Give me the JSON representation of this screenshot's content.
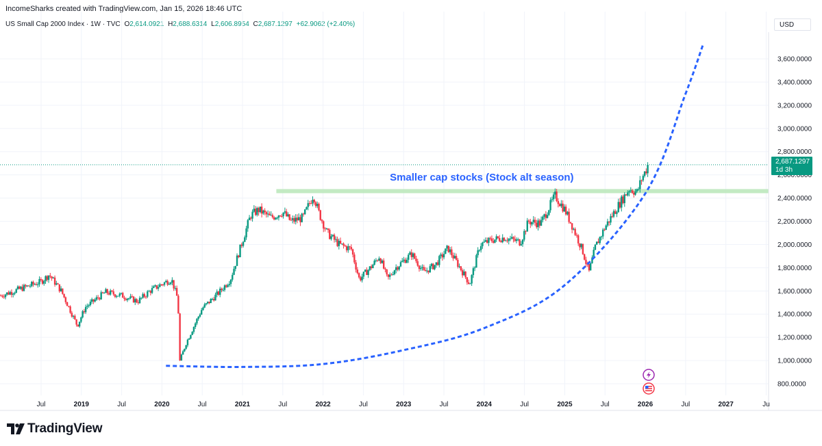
{
  "header": {
    "credit": "IncomeSharks created with TradingView.com, Jan 15, 2026 18:46 UTC"
  },
  "legend": {
    "symbol": "US Small Cap 2000 Index · 1W · TVC",
    "open_key": "O",
    "open": "2,614.0921",
    "high_key": "H",
    "high": "2,688.6314",
    "low_key": "L",
    "low": "2,606.8954",
    "close_key": "C",
    "close": "2,687.1297",
    "change": "+62.9062 (+2.40%)"
  },
  "currency": "USD",
  "price_tag": {
    "price": "2,687.1297",
    "countdown": "1d 3h"
  },
  "annotation": "Smaller cap stocks (Stock alt season)",
  "footer": {
    "brand": "TradingView"
  },
  "colors": {
    "up": "#089981",
    "down": "#f23645",
    "zone": "#b9e6b9",
    "curve": "#2962ff",
    "annotation": "#2962ff"
  },
  "icons": [
    "lightning-icon",
    "us-flag-icon"
  ],
  "chart_data": {
    "type": "candlestick",
    "title": "US Small Cap 2000 Index · 1W · TVC",
    "y_axis": {
      "ticks": [
        "800.0000",
        "1,000.0000",
        "1,200.0000",
        "1,400.0000",
        "1,600.0000",
        "1,800.0000",
        "2,000.0000",
        "2,200.0000",
        "2,400.0000",
        "2,600.0000",
        "2,800.0000",
        "3,000.0000",
        "3,200.0000",
        "3,400.0000",
        "3,600.0000"
      ],
      "tick_values": [
        800,
        1000,
        1200,
        1400,
        1600,
        1800,
        2000,
        2200,
        2400,
        2600,
        2800,
        3000,
        3200,
        3400,
        3600
      ],
      "range": [
        700,
        3830
      ]
    },
    "x_axis": {
      "ticks": [
        "Jul",
        "2019",
        "Jul",
        "2020",
        "Jul",
        "2021",
        "Jul",
        "2022",
        "Jul",
        "2023",
        "Jul",
        "2024",
        "Jul",
        "2025",
        "Jul",
        "2026",
        "Jul",
        "2027",
        "Ju"
      ],
      "tick_times": [
        2018.5,
        2019,
        2019.5,
        2020,
        2020.5,
        2021,
        2021.5,
        2022,
        2022.5,
        2023,
        2023.5,
        2024,
        2024.5,
        2025,
        2025.5,
        2026,
        2026.5,
        2027,
        2027.5
      ],
      "range": [
        2017.99,
        2027.53
      ]
    },
    "price_path": [
      [
        2018.0,
        1560
      ],
      [
        2018.5,
        1680
      ],
      [
        2018.6,
        1740
      ],
      [
        2018.75,
        1600
      ],
      [
        2018.95,
        1300
      ],
      [
        2019.05,
        1460
      ],
      [
        2019.3,
        1590
      ],
      [
        2019.5,
        1560
      ],
      [
        2019.7,
        1510
      ],
      [
        2019.85,
        1600
      ],
      [
        2020.0,
        1660
      ],
      [
        2020.12,
        1700
      ],
      [
        2020.2,
        1520
      ],
      [
        2020.22,
        990
      ],
      [
        2020.3,
        1150
      ],
      [
        2020.5,
        1450
      ],
      [
        2020.7,
        1580
      ],
      [
        2020.85,
        1700
      ],
      [
        2021.0,
        2030
      ],
      [
        2021.1,
        2250
      ],
      [
        2021.2,
        2300
      ],
      [
        2021.35,
        2230
      ],
      [
        2021.5,
        2280
      ],
      [
        2021.6,
        2200
      ],
      [
        2021.75,
        2230
      ],
      [
        2021.88,
        2430
      ],
      [
        2021.95,
        2270
      ],
      [
        2022.05,
        2100
      ],
      [
        2022.2,
        2000
      ],
      [
        2022.35,
        1960
      ],
      [
        2022.45,
        1700
      ],
      [
        2022.6,
        1810
      ],
      [
        2022.7,
        1900
      ],
      [
        2022.8,
        1700
      ],
      [
        2022.9,
        1800
      ],
      [
        2023.1,
        1920
      ],
      [
        2023.25,
        1760
      ],
      [
        2023.4,
        1830
      ],
      [
        2023.55,
        1970
      ],
      [
        2023.7,
        1800
      ],
      [
        2023.82,
        1660
      ],
      [
        2023.95,
        2000
      ],
      [
        2024.1,
        2040
      ],
      [
        2024.25,
        2060
      ],
      [
        2024.45,
        2020
      ],
      [
        2024.55,
        2200
      ],
      [
        2024.7,
        2180
      ],
      [
        2024.88,
        2420
      ],
      [
        2025.0,
        2300
      ],
      [
        2025.1,
        2150
      ],
      [
        2025.22,
        1950
      ],
      [
        2025.3,
        1760
      ],
      [
        2025.38,
        1980
      ],
      [
        2025.5,
        2150
      ],
      [
        2025.65,
        2320
      ],
      [
        2025.8,
        2480
      ],
      [
        2025.9,
        2450
      ],
      [
        2025.95,
        2560
      ],
      [
        2026.04,
        2687
      ]
    ],
    "last_close": 2687.1297,
    "resistance_zone": {
      "price": 2460,
      "start": 2021.42,
      "end": 2027.53
    },
    "curve": {
      "start": [
        2020.05,
        955
      ],
      "points": [
        [
          2021.0,
          945
        ],
        [
          2022.0,
          970
        ],
        [
          2023.0,
          1090
        ],
        [
          2024.0,
          1280
        ],
        [
          2025.0,
          1650
        ],
        [
          2026.0,
          2440
        ],
        [
          2026.5,
          3300
        ],
        [
          2026.72,
          3730
        ]
      ]
    },
    "annotation_at": {
      "time": 2023.97,
      "price": 2580
    }
  }
}
